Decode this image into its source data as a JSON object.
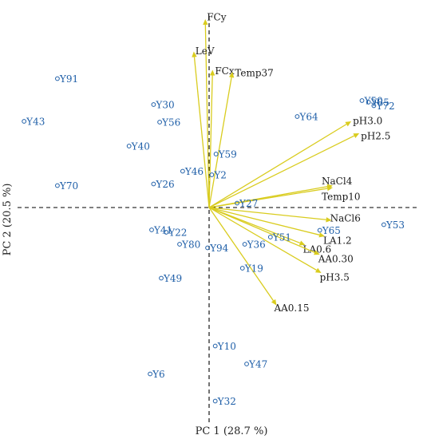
{
  "chart_data": {
    "type": "scatter",
    "subtype": "pca-biplot",
    "xlabel": "PC 1  (28.7 %)",
    "ylabel": "PC 2  (20.5 %)",
    "xlim": [
      -5,
      5.5
    ],
    "ylim": [
      -5.4,
      4.8
    ],
    "reference_lines": "dashed lines at x = 0 and y = 0",
    "grid": false,
    "colors": {
      "points": "#1f5fa8",
      "point_labels": "#1f5fa8",
      "vectors": "#d9cc1e",
      "variable_labels": "#1a1a1a",
      "reference_lines": "#000000"
    },
    "points": [
      {
        "label": "Y91",
        "x": -3.96,
        "y": 3.23
      },
      {
        "label": "Y43",
        "x": -4.83,
        "y": 2.16
      },
      {
        "label": "Y30",
        "x": -1.45,
        "y": 2.58
      },
      {
        "label": "Y56",
        "x": -1.29,
        "y": 2.14
      },
      {
        "label": "Y40",
        "x": -2.09,
        "y": 1.54
      },
      {
        "label": "Y70",
        "x": -3.96,
        "y": 0.55
      },
      {
        "label": "Y26",
        "x": -1.45,
        "y": 0.59
      },
      {
        "label": "Y46",
        "x": -0.69,
        "y": 0.91
      },
      {
        "label": "Y59",
        "x": 0.18,
        "y": 1.34
      },
      {
        "label": "Y2",
        "x": 0.07,
        "y": 0.82
      },
      {
        "label": "Y64",
        "x": 2.3,
        "y": 2.28
      },
      {
        "label": "Y50",
        "x": 3.99,
        "y": 2.68
      },
      {
        "label": "Y85",
        "x": 4.16,
        "y": 2.64
      },
      {
        "label": "Y72",
        "x": 4.3,
        "y": 2.55
      },
      {
        "label": "Y27",
        "x": 0.73,
        "y": 0.11
      },
      {
        "label": "Y53",
        "x": 4.56,
        "y": -0.43
      },
      {
        "label": "Y65",
        "x": 2.89,
        "y": -0.57
      },
      {
        "label": "Y51",
        "x": 1.6,
        "y": -0.74
      },
      {
        "label": "Y36",
        "x": 0.93,
        "y": -0.92
      },
      {
        "label": "Y94",
        "x": -0.04,
        "y": -1.01
      },
      {
        "label": "Y19",
        "x": 0.87,
        "y": -1.52
      },
      {
        "label": "Y41",
        "x": -1.5,
        "y": -0.56
      },
      {
        "label": "Y22",
        "x": -1.12,
        "y": -0.62
      },
      {
        "label": "Y80",
        "x": -0.77,
        "y": -0.92
      },
      {
        "label": "Y49",
        "x": -1.25,
        "y": -1.77
      },
      {
        "label": "Y10",
        "x": 0.16,
        "y": -3.47
      },
      {
        "label": "Y47",
        "x": 0.98,
        "y": -3.92
      },
      {
        "label": "Y6",
        "x": -1.54,
        "y": -4.17
      },
      {
        "label": "Y32",
        "x": 0.16,
        "y": -4.85
      }
    ],
    "vectors": [
      {
        "label": "FCy",
        "x": -0.1,
        "y": 4.72
      },
      {
        "label": "LeV",
        "x": -0.4,
        "y": 3.91
      },
      {
        "label": "FCx",
        "x": 0.09,
        "y": 3.45
      },
      {
        "label": "Temp37",
        "x": 0.61,
        "y": 3.4
      },
      {
        "label": "pH3.0",
        "x": 3.71,
        "y": 2.16
      },
      {
        "label": "pH2.5",
        "x": 3.92,
        "y": 1.86
      },
      {
        "label": "NaCl4",
        "x": 3.23,
        "y": 0.55
      },
      {
        "label": "Temp10",
        "x": 3.23,
        "y": 0.5
      },
      {
        "label": "NaCl6",
        "x": 3.2,
        "y": -0.32
      },
      {
        "label": "LA1.2",
        "x": 3.02,
        "y": -0.72
      },
      {
        "label": "LA0.6",
        "x": 2.51,
        "y": -0.94
      },
      {
        "label": "AA0.30",
        "x": 2.89,
        "y": -1.18
      },
      {
        "label": "pH3.5",
        "x": 2.93,
        "y": -1.64
      },
      {
        "label": "AA0.15",
        "x": 1.76,
        "y": -2.45
      }
    ]
  }
}
